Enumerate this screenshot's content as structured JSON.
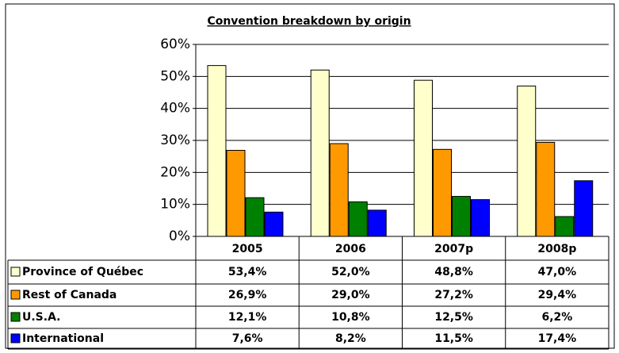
{
  "chart_data": {
    "type": "bar",
    "title": "Convention breakdown by origin",
    "categories": [
      "2005",
      "2006",
      "2007p",
      "2008p"
    ],
    "series": [
      {
        "name": "Province of Québec",
        "color": "#FFFFCC",
        "values": [
          53.4,
          52.0,
          48.8,
          47.0
        ],
        "value_labels": [
          "53,4%",
          "52,0%",
          "48,8%",
          "47,0%"
        ]
      },
      {
        "name": "Rest of Canada",
        "color": "#FF9900",
        "values": [
          26.9,
          29.0,
          27.2,
          29.4
        ],
        "value_labels": [
          "26,9%",
          "29,0%",
          "27,2%",
          "29,4%"
        ]
      },
      {
        "name": "U.S.A.",
        "color": "#008000",
        "values": [
          12.1,
          10.8,
          12.5,
          6.2
        ],
        "value_labels": [
          "12,1%",
          "10,8%",
          "12,5%",
          "6,2%"
        ]
      },
      {
        "name": "International",
        "color": "#0000FF",
        "values": [
          7.6,
          8.2,
          11.5,
          17.4
        ],
        "value_labels": [
          "7,6%",
          "8,2%",
          "11,5%",
          "17,4%"
        ]
      }
    ],
    "ylim": [
      0,
      60
    ],
    "yticks": [
      {
        "value": 0,
        "label": "0%"
      },
      {
        "value": 10,
        "label": "10%"
      },
      {
        "value": 20,
        "label": "20%"
      },
      {
        "value": 30,
        "label": "30%"
      },
      {
        "value": 40,
        "label": "40%"
      },
      {
        "value": 50,
        "label": "50%"
      },
      {
        "value": 60,
        "label": "60%"
      }
    ],
    "grid": true
  }
}
